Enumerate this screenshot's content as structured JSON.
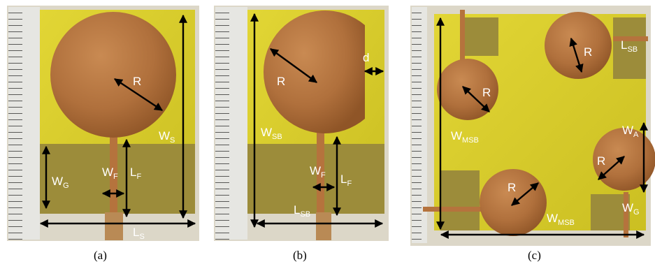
{
  "panels": [
    {
      "caption": "(a)",
      "labels": [
        {
          "main": "R",
          "sub": ""
        },
        {
          "main": "W",
          "sub": "S"
        },
        {
          "main": "W",
          "sub": "G"
        },
        {
          "main": "W",
          "sub": "F"
        },
        {
          "main": "L",
          "sub": "F"
        },
        {
          "main": "L",
          "sub": "S"
        }
      ]
    },
    {
      "caption": "(b)",
      "labels": [
        {
          "main": "R",
          "sub": ""
        },
        {
          "main": "d",
          "sub": ""
        },
        {
          "main": "W",
          "sub": "SB"
        },
        {
          "main": "W",
          "sub": "F"
        },
        {
          "main": "L",
          "sub": "F"
        },
        {
          "main": "L",
          "sub": "SB"
        }
      ]
    },
    {
      "caption": "(c)",
      "labels": [
        {
          "main": "R",
          "sub": ""
        },
        {
          "main": "L",
          "sub": "SB"
        },
        {
          "main": "R",
          "sub": ""
        },
        {
          "main": "W",
          "sub": "MSB"
        },
        {
          "main": "W",
          "sub": "A"
        },
        {
          "main": "R",
          "sub": ""
        },
        {
          "main": "R",
          "sub": ""
        },
        {
          "main": "W",
          "sub": "MSB"
        },
        {
          "main": "W",
          "sub": "G"
        }
      ]
    }
  ],
  "colors": {
    "substrate": "#d8cf2a",
    "copper": "#b5733d",
    "ground": "#9c8c3a",
    "ruler": "#e6e6e2"
  }
}
